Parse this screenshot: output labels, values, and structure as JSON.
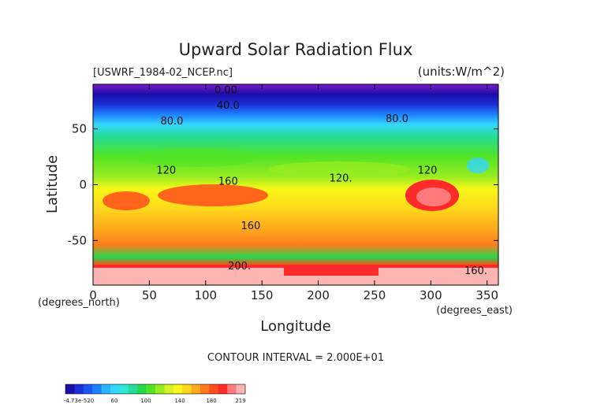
{
  "chart_data": {
    "type": "heatmap",
    "title": "Upward Solar Radiation Flux",
    "file_label": "[USWRF_1984-02_NCEP.nc]",
    "units_label": "(units:W/m^2)",
    "xlabel": "Longitude",
    "ylabel": "Latitude",
    "x_unit_label": "(degrees_east)",
    "y_unit_label": "(degrees_north)",
    "xlim": [
      0,
      360
    ],
    "ylim": [
      -90,
      90
    ],
    "x_ticks": [
      0,
      50,
      100,
      150,
      200,
      250,
      300,
      350
    ],
    "y_ticks": [
      50,
      0,
      -50
    ],
    "contour_interval_label": "CONTOUR INTERVAL = 2.000E+01",
    "contour_labels": [
      {
        "text": "0.00",
        "lon": 118,
        "lat": 82
      },
      {
        "text": "40.0",
        "lon": 120,
        "lat": 68
      },
      {
        "text": "80.0",
        "lon": 70,
        "lat": 54
      },
      {
        "text": "80.0",
        "lon": 270,
        "lat": 56
      },
      {
        "text": "120",
        "lon": 65,
        "lat": 10
      },
      {
        "text": "120.",
        "lon": 220,
        "lat": 3
      },
      {
        "text": "120",
        "lon": 297,
        "lat": 10
      },
      {
        "text": "160",
        "lon": 120,
        "lat": 0
      },
      {
        "text": "160",
        "lon": 140,
        "lat": -40
      },
      {
        "text": "200.",
        "lon": 130,
        "lat": -76
      },
      {
        "text": "160.",
        "lon": 340,
        "lat": -80
      }
    ],
    "colorbar": {
      "tick_labels": [
        "-4.73e-520",
        "60",
        "100",
        "140",
        "180",
        "219"
      ],
      "colors": [
        "#1c0ca8",
        "#1c2fd8",
        "#1c56f0",
        "#1c82ff",
        "#2ab4ff",
        "#35d6ff",
        "#2fe8d2",
        "#24dc96",
        "#24d84c",
        "#52e424",
        "#98ec22",
        "#d2f222",
        "#f8f818",
        "#ffd71c",
        "#ffaa1c",
        "#ff7a1c",
        "#ff4e1c",
        "#ff2a2a",
        "#ff7a7a",
        "#ffb4b4"
      ]
    }
  }
}
